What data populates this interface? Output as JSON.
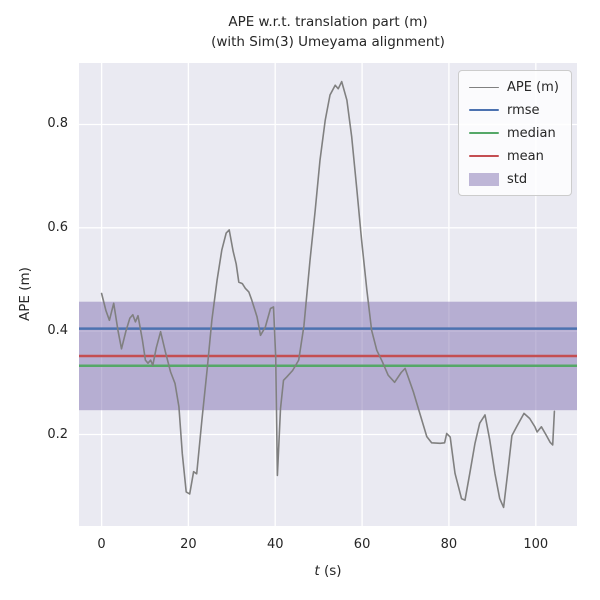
{
  "figure": {
    "title_line1": "APE w.r.t. translation part (m)",
    "title_line2": "(with Sim(3) Umeyama alignment)"
  },
  "axes": {
    "ylabel": "APE (m)",
    "xlabel_italic": "t",
    "xlabel_rest": " (s)"
  },
  "legend": {
    "items": [
      {
        "label": "APE (m)",
        "swatch": "line",
        "color": "#808080",
        "lw": 1.5
      },
      {
        "label": "rmse",
        "swatch": "line",
        "color": "#4c72b0",
        "lw": 2.5
      },
      {
        "label": "median",
        "swatch": "line",
        "color": "#55a868",
        "lw": 2.5
      },
      {
        "label": "mean",
        "swatch": "line",
        "color": "#c44e52",
        "lw": 2.5
      },
      {
        "label": "std",
        "swatch": "patch",
        "color": "rgba(129,114,178,0.5)",
        "lw": 0
      }
    ]
  },
  "chart_data": {
    "type": "line",
    "title": "APE w.r.t. translation part (m)\n(with Sim(3) Umeyama alignment)",
    "xlabel": "t (s)",
    "ylabel": "APE (m)",
    "xlim": [
      -5.2,
      109.5
    ],
    "ylim": [
      0.023,
      0.919
    ],
    "xticks": [
      0,
      20,
      40,
      60,
      80,
      100
    ],
    "xtick_labels": [
      "0",
      "20",
      "40",
      "60",
      "80",
      "100"
    ],
    "yticks": [
      0.2,
      0.4,
      0.6,
      0.8
    ],
    "ytick_labels": [
      "0.2",
      "0.4",
      "0.6",
      "0.8"
    ],
    "grid": true,
    "legend_position": "upper right",
    "colors": {
      "plot_bg": "#eaeaf2",
      "grid": "#ffffff",
      "ape_line": "#808080",
      "rmse": "#4c72b0",
      "median": "#55a868",
      "mean": "#c44e52",
      "std_band": "#8172b2",
      "text": "#262626"
    },
    "stats": {
      "rmse": 0.405,
      "mean": 0.352,
      "median": 0.333,
      "std": 0.105,
      "std_band": [
        0.247,
        0.457
      ]
    },
    "stat_lines": [
      {
        "name": "rmse",
        "value": 0.405,
        "color": "#4c72b0"
      },
      {
        "name": "median",
        "value": 0.333,
        "color": "#55a868"
      },
      {
        "name": "mean",
        "value": 0.352,
        "color": "#c44e52"
      }
    ],
    "series": [
      {
        "name": "APE (m)",
        "color": "#808080",
        "points": [
          [
            0,
            0.473
          ],
          [
            1,
            0.44
          ],
          [
            1.8,
            0.421
          ],
          [
            2.8,
            0.454
          ],
          [
            3.8,
            0.4
          ],
          [
            4.6,
            0.366
          ],
          [
            5.6,
            0.4
          ],
          [
            6.5,
            0.425
          ],
          [
            7.2,
            0.432
          ],
          [
            7.8,
            0.418
          ],
          [
            8.4,
            0.43
          ],
          [
            9.4,
            0.383
          ],
          [
            10.1,
            0.344
          ],
          [
            10.7,
            0.338
          ],
          [
            11.3,
            0.344
          ],
          [
            11.8,
            0.334
          ],
          [
            12.6,
            0.368
          ],
          [
            13.6,
            0.399
          ],
          [
            14.7,
            0.36
          ],
          [
            15.9,
            0.321
          ],
          [
            16.9,
            0.299
          ],
          [
            17.8,
            0.254
          ],
          [
            18.6,
            0.163
          ],
          [
            19.5,
            0.089
          ],
          [
            20.3,
            0.085
          ],
          [
            21.2,
            0.128
          ],
          [
            21.9,
            0.124
          ],
          [
            23.1,
            0.228
          ],
          [
            24.3,
            0.325
          ],
          [
            25.4,
            0.422
          ],
          [
            26.6,
            0.499
          ],
          [
            27.7,
            0.557
          ],
          [
            28.7,
            0.59
          ],
          [
            29.4,
            0.596
          ],
          [
            30.3,
            0.555
          ],
          [
            31,
            0.53
          ],
          [
            31.6,
            0.495
          ],
          [
            32.4,
            0.492
          ],
          [
            33.1,
            0.483
          ],
          [
            33.9,
            0.476
          ],
          [
            34.6,
            0.46
          ],
          [
            35.8,
            0.428
          ],
          [
            36.6,
            0.392
          ],
          [
            37.7,
            0.408
          ],
          [
            38.9,
            0.444
          ],
          [
            39.6,
            0.447
          ],
          [
            40.1,
            0.35
          ],
          [
            40.5,
            0.121
          ],
          [
            41.2,
            0.25
          ],
          [
            41.9,
            0.305
          ],
          [
            42.7,
            0.312
          ],
          [
            44,
            0.324
          ],
          [
            45.4,
            0.344
          ],
          [
            46.6,
            0.41
          ],
          [
            48,
            0.537
          ],
          [
            49.2,
            0.634
          ],
          [
            50.3,
            0.731
          ],
          [
            51.5,
            0.808
          ],
          [
            52.6,
            0.857
          ],
          [
            53.8,
            0.876
          ],
          [
            54.5,
            0.869
          ],
          [
            55.3,
            0.883
          ],
          [
            56.5,
            0.847
          ],
          [
            57.6,
            0.776
          ],
          [
            58.8,
            0.673
          ],
          [
            59.9,
            0.576
          ],
          [
            61.1,
            0.479
          ],
          [
            62.2,
            0.402
          ],
          [
            63.4,
            0.363
          ],
          [
            64.6,
            0.342
          ],
          [
            66,
            0.315
          ],
          [
            67.5,
            0.301
          ],
          [
            69,
            0.32
          ],
          [
            69.9,
            0.328
          ],
          [
            71.8,
            0.283
          ],
          [
            73.3,
            0.241
          ],
          [
            74.9,
            0.196
          ],
          [
            76,
            0.184
          ],
          [
            78,
            0.183
          ],
          [
            79,
            0.184
          ],
          [
            79.5,
            0.202
          ],
          [
            80.3,
            0.195
          ],
          [
            81.4,
            0.125
          ],
          [
            82.9,
            0.076
          ],
          [
            83.7,
            0.073
          ],
          [
            84.8,
            0.125
          ],
          [
            86,
            0.183
          ],
          [
            87.1,
            0.222
          ],
          [
            88.3,
            0.238
          ],
          [
            89.4,
            0.19
          ],
          [
            90.6,
            0.125
          ],
          [
            91.7,
            0.076
          ],
          [
            92.6,
            0.059
          ],
          [
            93.6,
            0.131
          ],
          [
            94.5,
            0.198
          ],
          [
            95.6,
            0.215
          ],
          [
            97.3,
            0.241
          ],
          [
            98.6,
            0.231
          ],
          [
            99.8,
            0.215
          ],
          [
            100.3,
            0.205
          ],
          [
            101.3,
            0.215
          ],
          [
            102.4,
            0.199
          ],
          [
            103.3,
            0.185
          ],
          [
            103.9,
            0.18
          ],
          [
            104.3,
            0.245
          ]
        ]
      }
    ]
  }
}
